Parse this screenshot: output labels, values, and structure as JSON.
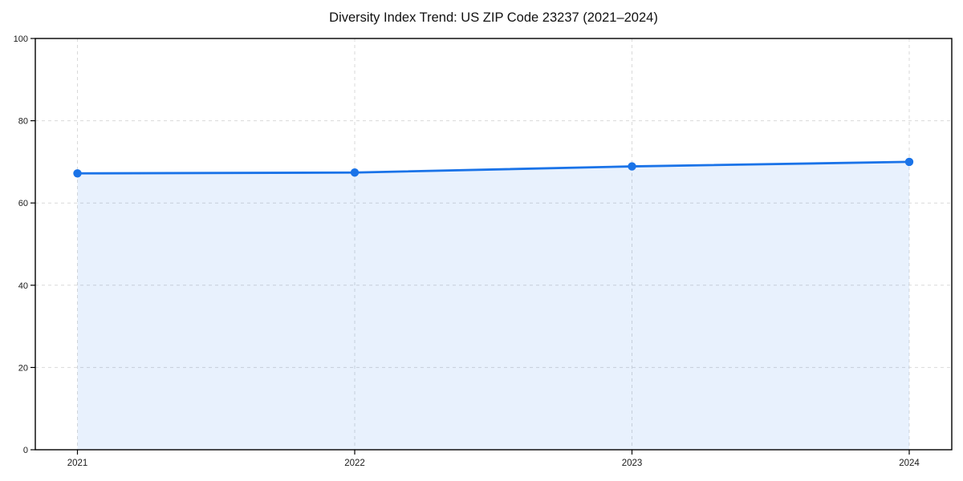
{
  "chart_data": {
    "type": "area",
    "title": "Diversity Index Trend: US ZIP Code 23237 (2021–2024)",
    "categories": [
      "2021",
      "2022",
      "2023",
      "2024"
    ],
    "series": [
      {
        "name": "Diversity Index",
        "values": [
          67.2,
          67.4,
          68.9,
          70.0
        ]
      }
    ],
    "xlabel": "",
    "ylabel": "",
    "ylim": [
      0,
      100
    ],
    "yticks": [
      0,
      20,
      40,
      60,
      80,
      100
    ],
    "grid": "dashed, both axes",
    "legend_position": "none",
    "colors": {
      "line": "#1a73e8",
      "marker": "#1a73e8",
      "fill": "rgba(26,115,232,0.10)",
      "grid": "#d9d9d9",
      "axis": "#000000",
      "tick_text": "#1a1a1a",
      "title_text": "#111111",
      "background": "#ffffff"
    }
  }
}
